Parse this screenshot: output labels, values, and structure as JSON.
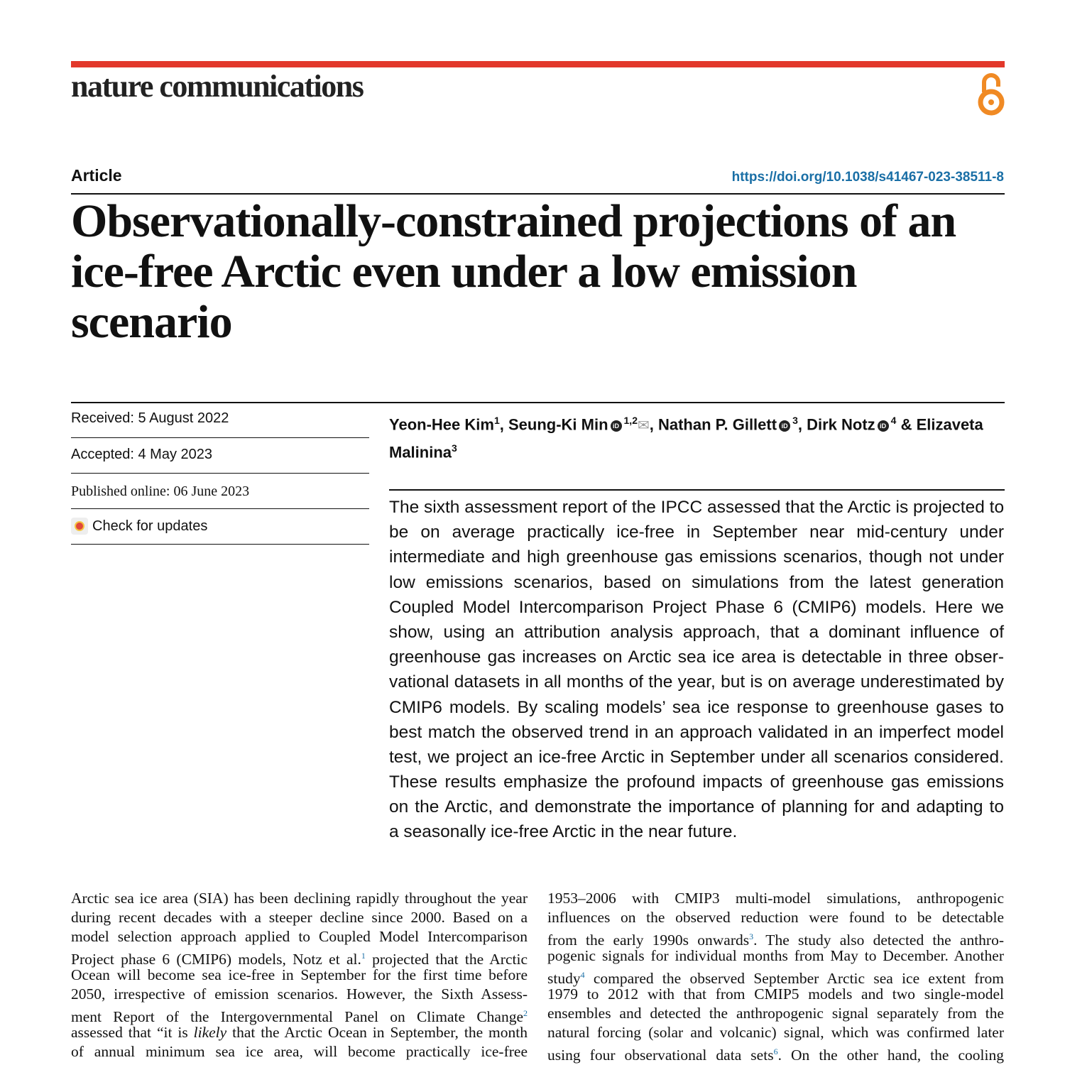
{
  "header": {
    "journal": "nature communications",
    "open_access_icon": "open-access-lock-icon",
    "accent_color": "#e2382b",
    "oa_color": "#f08a24"
  },
  "article_type": "Article",
  "doi": "https://doi.org/10.1038/s41467-023-38511-8",
  "title": "Observationally-constrained projections of an ice-free Arctic even under a low emission scenario",
  "dates": {
    "received": "Received: 5 August 2022",
    "accepted": "Accepted: 4 May 2023",
    "published": "Published online: 06 June 2023",
    "check_updates": "Check for updates"
  },
  "authors": [
    {
      "name": "Yeon-Hee Kim",
      "aff": "1",
      "orcid": false,
      "sep": ", "
    },
    {
      "name": "Seung-Ki Min",
      "aff": "1,2",
      "orcid": true,
      "mail": true,
      "sep": ", "
    },
    {
      "name": "Nathan P. Gillett",
      "aff": "3",
      "orcid": true,
      "sep": ", "
    },
    {
      "name": "Dirk Notz",
      "aff": "4",
      "orcid": true,
      "sep": " & "
    },
    {
      "name": "Elizaveta Malinina",
      "aff": "3",
      "orcid": false,
      "sep": ""
    }
  ],
  "abstract": [
    [
      "The sixth assessment report of the IPCC assessed that the Arctic is projected to"
    ],
    [
      "be on average practically ice-free in September near mid-century under"
    ],
    [
      "intermediate and high greenhouse gas emissions scenarios, though not under"
    ],
    [
      "low emissions scenarios, based on simulations from the latest generation"
    ],
    [
      "Coupled Model Intercomparison Project Phase 6 (CMIP6) models. Here we"
    ],
    [
      "show, using an attribution analysis approach, that a dominant influence of"
    ],
    [
      "greenhouse gas increases on Arctic sea ice area is detectable in three obser-"
    ],
    [
      "vational datasets in all months of the year, but is on average underestimated by"
    ],
    [
      "CMIP6 models. By scaling models’ sea ice response to greenhouse gases to"
    ],
    [
      "best match the observed trend in an approach validated in an imperfect model"
    ],
    [
      "test, we project an ice-free Arctic in September under all scenarios considered."
    ],
    [
      "These results emphasize the profound impacts of greenhouse gas emissions"
    ],
    [
      "on the Arctic, and demonstrate the importance of planning for and adapting to"
    ],
    [
      "a seasonally ice-free Arctic in the near future."
    ]
  ],
  "body_left": [
    [
      "Arctic sea ice area (SIA) has been declining rapidly throughout the year"
    ],
    [
      "during recent decades with a steeper decline since 2000. Based on a"
    ],
    [
      "model selection approach applied to Coupled Model Intercomparison"
    ],
    [
      "Project phase 6 (CMIP6) models, Notz et al.",
      {
        "sup": "1"
      },
      " projected that the Arctic"
    ],
    [
      "Ocean will become sea ice-free in September for the first time before"
    ],
    [
      "2050, irrespective of emission scenarios. However, the Sixth Assess-"
    ],
    [
      "ment Report of the Intergovernmental Panel on Climate Change",
      {
        "sup": "2"
      }
    ],
    [
      "assessed that “it is ",
      {
        "i": "likely"
      },
      " that the Arctic Ocean in September, the month"
    ],
    [
      "of annual minimum sea ice area, will become practically ice-free"
    ]
  ],
  "body_right": [
    [
      "1953–2006 with CMIP3 multi-model simulations, anthropogenic"
    ],
    [
      "influences on the observed reduction were found to be detectable"
    ],
    [
      "from the early 1990s onwards",
      {
        "sup": "3"
      },
      ". The study also detected the anthro-"
    ],
    [
      "pogenic signals for individual months from May to December. Another"
    ],
    [
      "study",
      {
        "sup": "4"
      },
      " compared the observed September Arctic sea ice extent from"
    ],
    [
      "1979 to 2012 with that from CMIP5 models and two single-model"
    ],
    [
      "ensembles and detected the anthropogenic signal separately from the"
    ],
    [
      "natural forcing (solar and volcanic) signal, which was confirmed later"
    ],
    [
      "using four observational data sets",
      {
        "sup": "6"
      },
      ". On the other hand, the cooling"
    ]
  ]
}
